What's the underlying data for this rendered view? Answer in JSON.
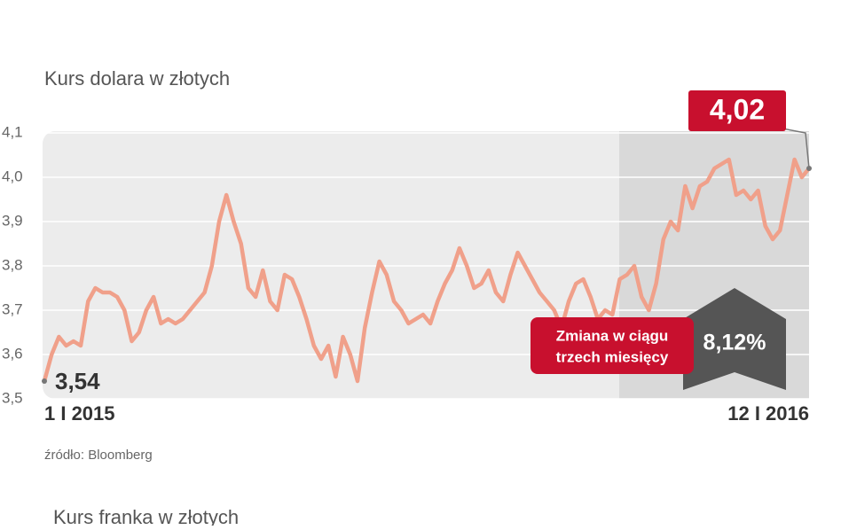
{
  "chart_data": {
    "type": "line",
    "title": "Kurs dolara w złotych",
    "source": "źródło: Bloomberg",
    "change_label": [
      "Zmiana w ciągu",
      "trzech miesięcy"
    ],
    "change_value": "8,12%",
    "next_title": "Kurs franka w złotych",
    "color": "#f0a08a",
    "grid": true,
    "ylim": [
      3.5,
      4.1
    ],
    "yticks": [
      {
        "value": 3.5,
        "label": "3,5"
      },
      {
        "value": 3.6,
        "label": "3,6"
      },
      {
        "value": 3.7,
        "label": "3,7"
      },
      {
        "value": 3.8,
        "label": "3,8"
      },
      {
        "value": 3.9,
        "label": "3,9"
      },
      {
        "value": 4.0,
        "label": "4,0"
      },
      {
        "value": 4.1,
        "label": "4,1"
      }
    ],
    "categories": [
      "1 I 2015",
      null,
      null,
      null,
      null,
      null,
      null,
      null,
      null,
      null,
      null,
      null,
      null,
      null,
      null,
      null,
      null,
      null,
      null,
      null,
      null,
      null,
      null,
      null,
      null,
      null,
      null,
      null,
      null,
      null,
      null,
      null,
      null,
      null,
      null,
      null,
      null,
      null,
      null,
      null,
      null,
      null,
      null,
      null,
      null,
      null,
      null,
      null,
      null,
      null,
      null,
      null,
      null,
      null,
      null,
      null,
      null,
      null,
      null,
      null,
      null,
      null,
      null,
      null,
      null,
      null,
      null,
      null,
      null,
      null,
      null,
      null,
      null,
      null,
      null,
      null,
      null,
      null,
      null,
      null,
      null,
      null,
      null,
      null,
      null,
      null,
      null,
      null,
      null,
      null,
      null,
      null,
      null,
      null,
      null,
      null,
      null,
      null,
      null,
      null,
      null,
      null,
      null,
      null,
      null,
      "12 I 2016"
    ],
    "values": [
      3.54,
      3.6,
      3.64,
      3.62,
      3.63,
      3.62,
      3.72,
      3.75,
      3.74,
      3.74,
      3.73,
      3.7,
      3.63,
      3.65,
      3.7,
      3.73,
      3.67,
      3.68,
      3.67,
      3.68,
      3.7,
      3.72,
      3.74,
      3.8,
      3.9,
      3.96,
      3.9,
      3.85,
      3.75,
      3.73,
      3.79,
      3.72,
      3.7,
      3.78,
      3.77,
      3.73,
      3.68,
      3.62,
      3.59,
      3.62,
      3.55,
      3.64,
      3.6,
      3.54,
      3.66,
      3.74,
      3.81,
      3.78,
      3.72,
      3.7,
      3.67,
      3.68,
      3.69,
      3.67,
      3.72,
      3.76,
      3.79,
      3.84,
      3.8,
      3.75,
      3.76,
      3.79,
      3.74,
      3.72,
      3.78,
      3.83,
      3.8,
      3.77,
      3.74,
      3.72,
      3.7,
      3.66,
      3.72,
      3.76,
      3.77,
      3.73,
      3.68,
      3.7,
      3.69,
      3.77,
      3.78,
      3.8,
      3.73,
      3.7,
      3.76,
      3.86,
      3.9,
      3.88,
      3.98,
      3.93,
      3.98,
      3.99,
      4.02,
      4.03,
      4.04,
      3.96,
      3.97,
      3.95,
      3.97,
      3.89,
      3.86,
      3.88,
      3.96,
      4.04,
      4.0,
      4.02
    ],
    "value_labels": [
      "3,54",
      null,
      null,
      null,
      null,
      null,
      null,
      null,
      null,
      null,
      null,
      null,
      null,
      null,
      null,
      null,
      null,
      null,
      null,
      null,
      null,
      null,
      null,
      null,
      null,
      null,
      null,
      null,
      null,
      null,
      null,
      null,
      null,
      null,
      null,
      null,
      null,
      null,
      null,
      null,
      null,
      null,
      null,
      null,
      null,
      null,
      null,
      null,
      null,
      null,
      null,
      null,
      null,
      null,
      null,
      null,
      null,
      null,
      null,
      null,
      null,
      null,
      null,
      null,
      null,
      null,
      null,
      null,
      null,
      null,
      null,
      null,
      null,
      null,
      null,
      null,
      null,
      null,
      null,
      null,
      null,
      null,
      null,
      null,
      null,
      null,
      null,
      null,
      null,
      null,
      null,
      null,
      null,
      null,
      null,
      null,
      null,
      null,
      null,
      null,
      null,
      null,
      null,
      null,
      null,
      "4,02"
    ]
  }
}
